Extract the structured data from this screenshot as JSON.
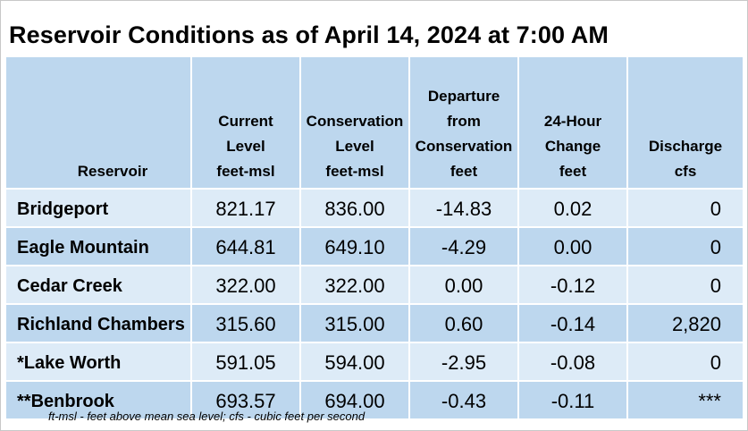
{
  "title": "Reservoir Conditions as of April 14, 2024 at 7:00 AM",
  "columns": [
    [
      "Reservoir"
    ],
    [
      "Current",
      "Level",
      "feet-msl"
    ],
    [
      "Conservation",
      "Level",
      "feet-msl"
    ],
    [
      "Departure",
      "from",
      "Conservation",
      "feet"
    ],
    [
      "24-Hour",
      "Change",
      "feet"
    ],
    [
      "Discharge",
      "cfs"
    ]
  ],
  "rows": [
    {
      "name": "Bridgeport",
      "current": "821.17",
      "conservation": "836.00",
      "departure": "-14.83",
      "change": "0.02",
      "discharge": "0"
    },
    {
      "name": "Eagle Mountain",
      "current": "644.81",
      "conservation": "649.10",
      "departure": "-4.29",
      "change": "0.00",
      "discharge": "0"
    },
    {
      "name": "Cedar Creek",
      "current": "322.00",
      "conservation": "322.00",
      "departure": "0.00",
      "change": "-0.12",
      "discharge": "0"
    },
    {
      "name": "Richland Chambers",
      "current": "315.60",
      "conservation": "315.00",
      "departure": "0.60",
      "change": "-0.14",
      "discharge": "2,820"
    },
    {
      "name": "*Lake Worth",
      "current": "591.05",
      "conservation": "594.00",
      "departure": "-2.95",
      "change": "-0.08",
      "discharge": "0"
    },
    {
      "name": "**Benbrook",
      "current": "693.57",
      "conservation": "694.00",
      "departure": "-0.43",
      "change": "-0.11",
      "discharge": "***"
    }
  ],
  "footnote": "ft-msl - feet above mean sea level; cfs - cubic feet per second",
  "colors": {
    "header_bg": "#bdd7ee",
    "row_light": "#ddebf7",
    "row_dark": "#bdd7ee"
  }
}
